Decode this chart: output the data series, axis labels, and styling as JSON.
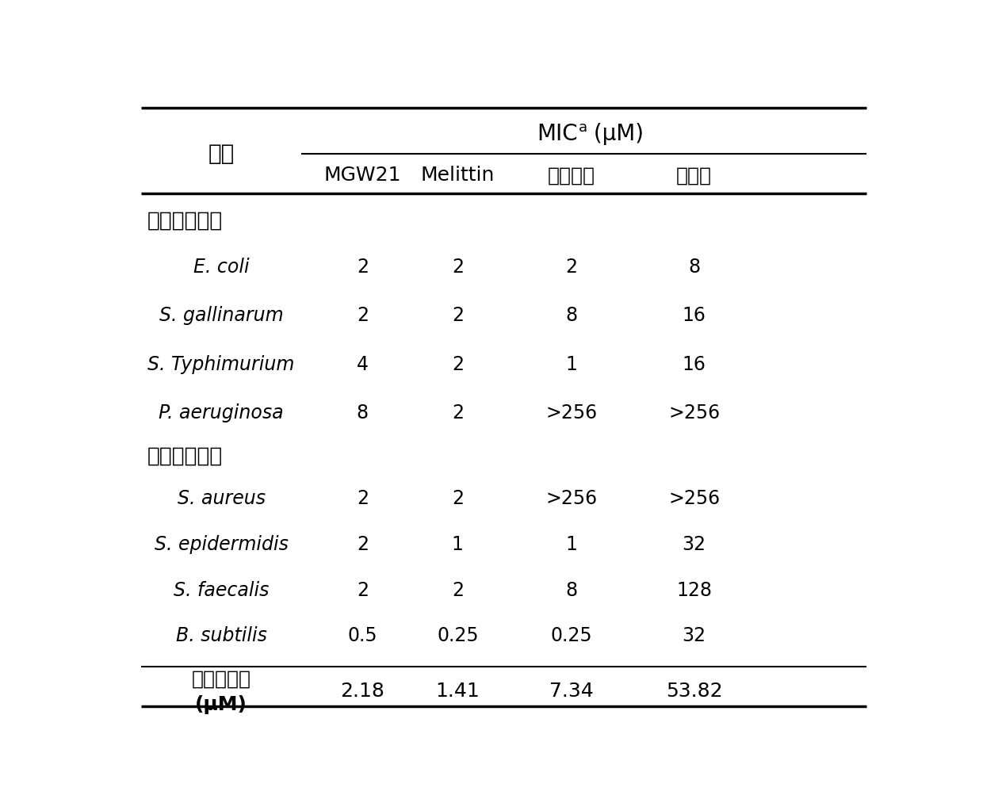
{
  "title_col1": "菌株",
  "col_headers": [
    "MGW21",
    "Melittin",
    "卡那霉素",
    "氯霉素"
  ],
  "section1_label": "革兰氏阴性菌",
  "section2_label": "革兰氏阳性菌",
  "rows": [
    {
      "name": "E. coli",
      "italic": true,
      "values": [
        "2",
        "2",
        "2",
        "8"
      ]
    },
    {
      "name": "S. gallinarum",
      "italic": true,
      "values": [
        "2",
        "2",
        "8",
        "16"
      ]
    },
    {
      "name": "S. Typhimurium",
      "italic": true,
      "values": [
        "4",
        "2",
        "1",
        "16"
      ]
    },
    {
      "name": "P. aeruginosa",
      "italic": true,
      "values": [
        "8",
        "2",
        ">256",
        ">256"
      ]
    },
    {
      "name": "S. aureus",
      "italic": true,
      "values": [
        "2",
        "2",
        ">256",
        ">256"
      ]
    },
    {
      "name": "S. epidermidis",
      "italic": true,
      "values": [
        "2",
        "1",
        "1",
        "32"
      ]
    },
    {
      "name": "S. faecalis",
      "italic": true,
      "values": [
        "2",
        "2",
        "8",
        "128"
      ]
    },
    {
      "name": "B. subtilis",
      "italic": true,
      "values": [
        "0.5",
        "0.25",
        "0.25",
        "32"
      ]
    }
  ],
  "footer_label_line1": "几何平均数",
  "footer_label_line2": "(μM)",
  "footer_values": [
    "2.18",
    "1.41",
    "7.34",
    "53.82"
  ],
  "bg_color": "#ffffff",
  "text_color": "#000000",
  "line_color": "#000000"
}
